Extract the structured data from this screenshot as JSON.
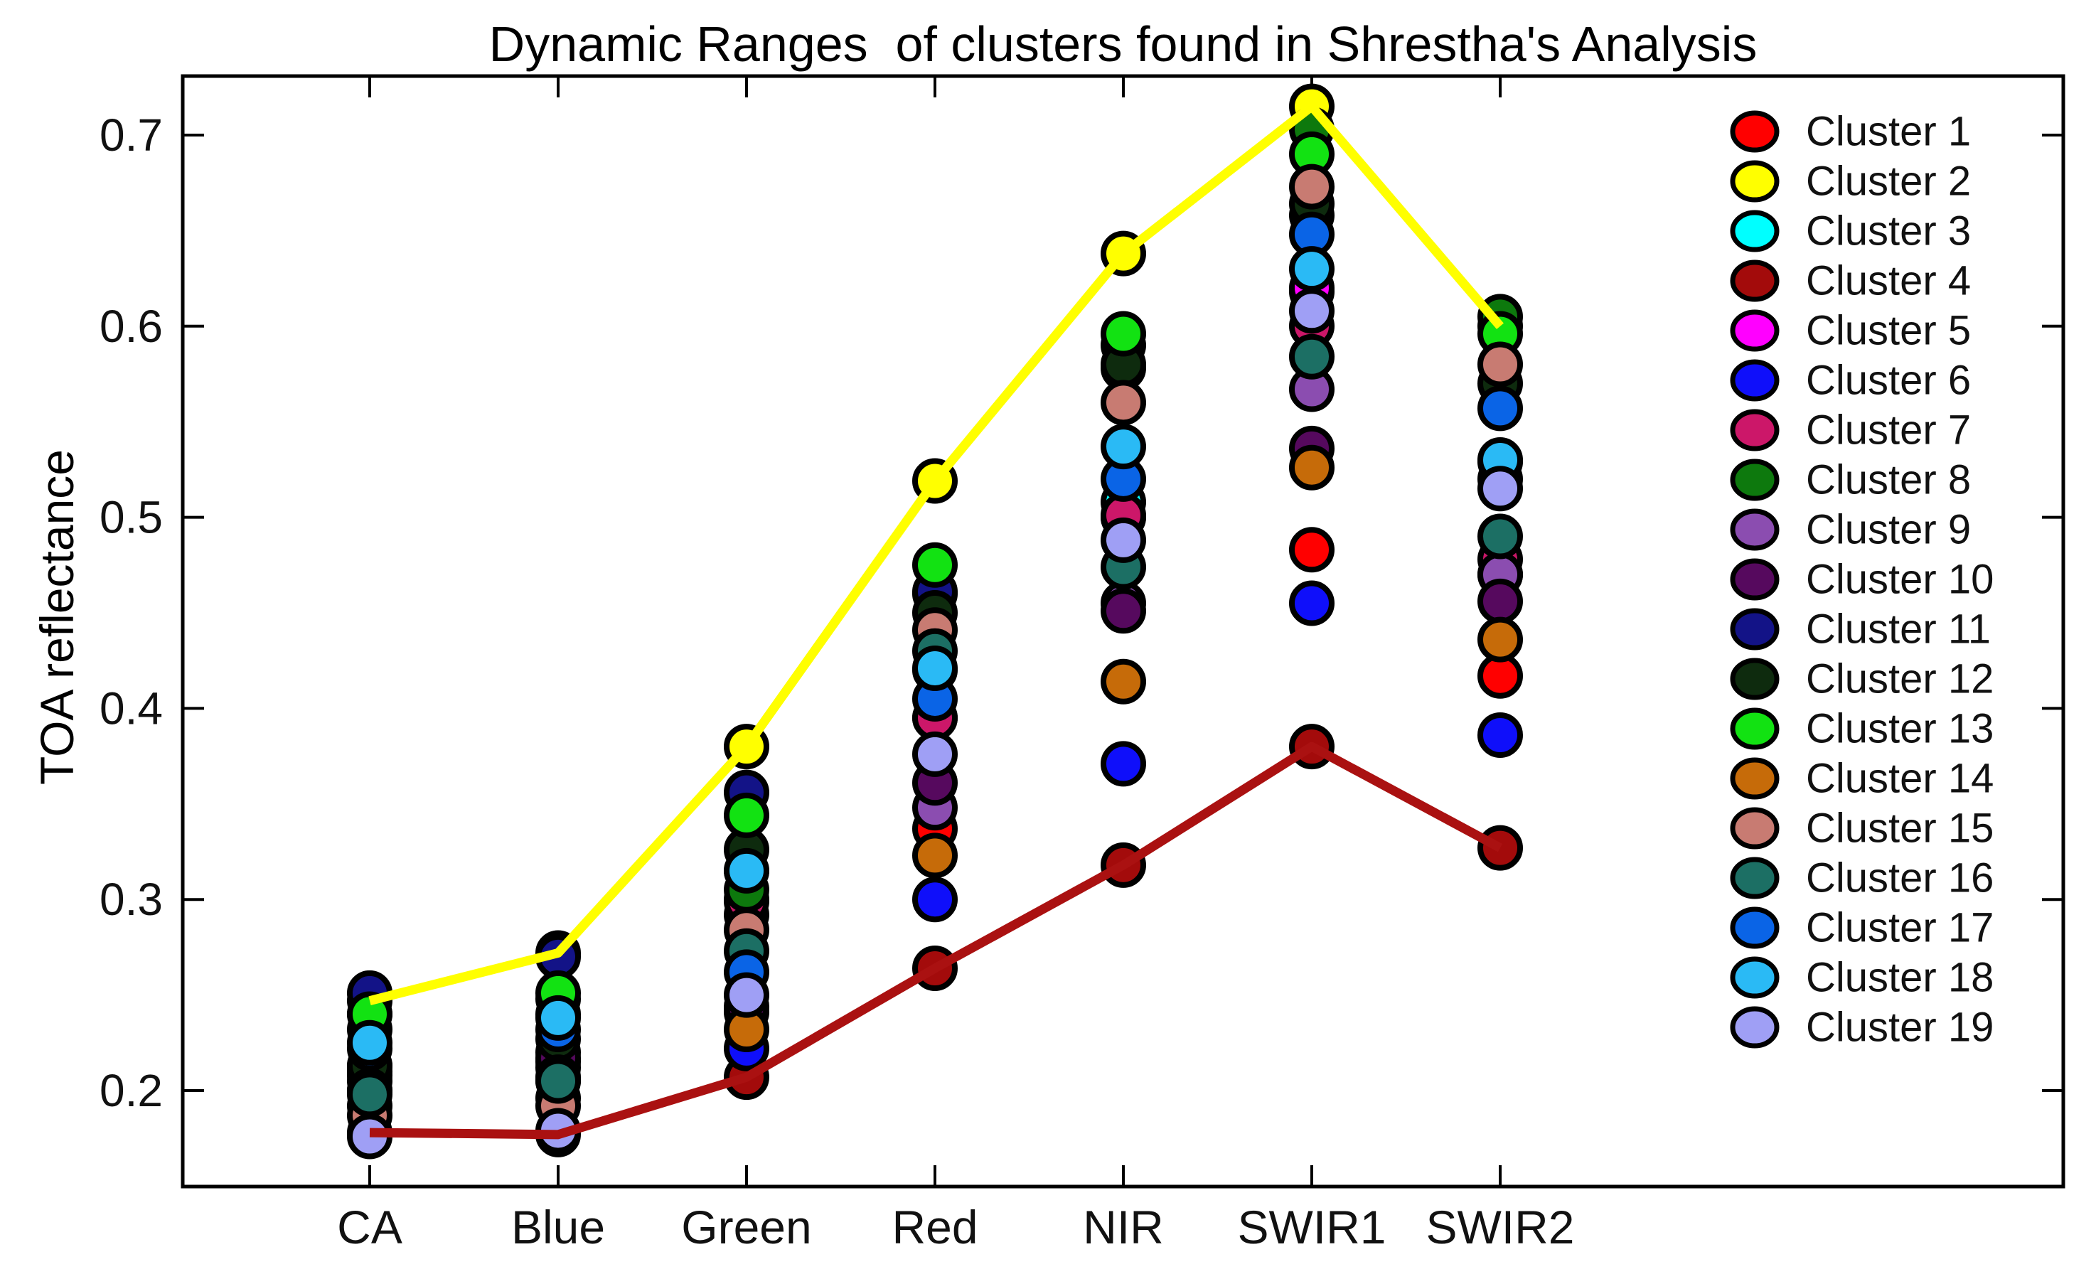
{
  "figure": {
    "title": "Dynamic Ranges  of clusters found in Shrestha's Analysis",
    "ylabel": "TOA reflectance"
  },
  "chart_data": {
    "type": "scatter",
    "title": "Dynamic Ranges  of clusters found in Shrestha's Analysis",
    "xlabel": "",
    "ylabel": "TOA reflectance",
    "categories": [
      "CA",
      "Blue",
      "Green",
      "Red",
      "NIR",
      "SWIR1",
      "SWIR2"
    ],
    "yticks": [
      0.2,
      0.3,
      0.4,
      0.5,
      0.6,
      0.7
    ],
    "ylim": [
      0.15,
      0.731
    ],
    "grid": false,
    "legend_position": "right-inside",
    "marker": "filled-circle-black-edge",
    "annotations": "Yellow line traces Cluster 2 (max envelope); dark red line traces Cluster 4 (min envelope)",
    "series": [
      {
        "name": "Cluster 1",
        "color": "#FF0000",
        "line": false,
        "values": [
          0.2,
          0.205,
          0.3,
          0.337,
          0.5,
          0.483,
          0.417
        ]
      },
      {
        "name": "Cluster 2",
        "color": "#FFFF00",
        "line": true,
        "line_color": "#FFFF00",
        "values": [
          0.247,
          0.272,
          0.38,
          0.519,
          0.638,
          0.715,
          0.6
        ]
      },
      {
        "name": "Cluster 3",
        "color": "#00FFFF",
        "line": false,
        "values": [
          0.232,
          0.24,
          0.315,
          0.42,
          0.508,
          0.618,
          0.52
        ]
      },
      {
        "name": "Cluster 4",
        "color": "#A30B0B",
        "line": true,
        "line_color": "#AA1111",
        "values": [
          0.178,
          0.177,
          0.207,
          0.264,
          0.318,
          0.38,
          0.327
        ]
      },
      {
        "name": "Cluster 5",
        "color": "#FF00FF",
        "line": false,
        "values": [
          0.21,
          0.215,
          0.292,
          0.395,
          0.5,
          0.62,
          0.47
        ]
      },
      {
        "name": "Cluster 6",
        "color": "#0F0FFA",
        "line": false,
        "values": [
          0.192,
          0.196,
          0.222,
          0.3,
          0.371,
          0.455,
          0.386
        ]
      },
      {
        "name": "Cluster 7",
        "color": "#CC1769",
        "line": false,
        "values": [
          0.213,
          0.22,
          0.299,
          0.395,
          0.501,
          0.6,
          0.478
        ]
      },
      {
        "name": "Cluster 8",
        "color": "#0D790D",
        "line": false,
        "values": [
          0.24,
          0.248,
          0.305,
          0.46,
          0.59,
          0.703,
          0.605
        ]
      },
      {
        "name": "Cluster 9",
        "color": "#8B4DB0",
        "line": false,
        "values": [
          0.205,
          0.212,
          0.241,
          0.348,
          0.455,
          0.567,
          0.47
        ]
      },
      {
        "name": "Cluster 10",
        "color": "#56095E",
        "line": false,
        "values": [
          0.208,
          0.217,
          0.244,
          0.361,
          0.451,
          0.536,
          0.456
        ]
      },
      {
        "name": "Cluster 11",
        "color": "#131387",
        "line": false,
        "values": [
          0.251,
          0.27,
          0.356,
          0.461,
          0.578,
          0.658,
          0.529
        ]
      },
      {
        "name": "Cluster 12",
        "color": "#0E2B0E",
        "line": false,
        "values": [
          0.213,
          0.227,
          0.326,
          0.45,
          0.58,
          0.664,
          0.57
        ]
      },
      {
        "name": "Cluster 13",
        "color": "#12E212",
        "line": false,
        "values": [
          0.24,
          0.251,
          0.344,
          0.475,
          0.596,
          0.69,
          0.596
        ]
      },
      {
        "name": "Cluster 14",
        "color": "#C66B09",
        "line": false,
        "values": [
          0.2,
          0.207,
          0.232,
          0.323,
          0.414,
          0.526,
          0.436
        ]
      },
      {
        "name": "Cluster 15",
        "color": "#C87B72",
        "line": false,
        "values": [
          0.187,
          0.192,
          0.284,
          0.441,
          0.56,
          0.673,
          0.58
        ]
      },
      {
        "name": "Cluster 16",
        "color": "#1C6F64",
        "line": false,
        "values": [
          0.198,
          0.205,
          0.273,
          0.43,
          0.474,
          0.584,
          0.49
        ]
      },
      {
        "name": "Cluster 17",
        "color": "#0A64E6",
        "line": false,
        "values": [
          0.222,
          0.232,
          0.262,
          0.405,
          0.52,
          0.648,
          0.557
        ]
      },
      {
        "name": "Cluster 18",
        "color": "#2ABAF5",
        "line": false,
        "values": [
          0.225,
          0.238,
          0.315,
          0.421,
          0.537,
          0.63,
          0.53
        ]
      },
      {
        "name": "Cluster 19",
        "color": "#9F9FF5",
        "line": false,
        "values": [
          0.176,
          0.179,
          0.25,
          0.376,
          0.488,
          0.608,
          0.515
        ]
      }
    ]
  },
  "legend": {
    "labels": [
      "Cluster 1",
      "Cluster 2",
      "Cluster 3",
      "Cluster 4",
      "Cluster 5",
      "Cluster 6",
      "Cluster 7",
      "Cluster 8",
      "Cluster 9",
      "Cluster 10",
      "Cluster 11",
      "Cluster 12",
      "Cluster 13",
      "Cluster 14",
      "Cluster 15",
      "Cluster 16",
      "Cluster 17",
      "Cluster 18",
      "Cluster 19"
    ]
  }
}
